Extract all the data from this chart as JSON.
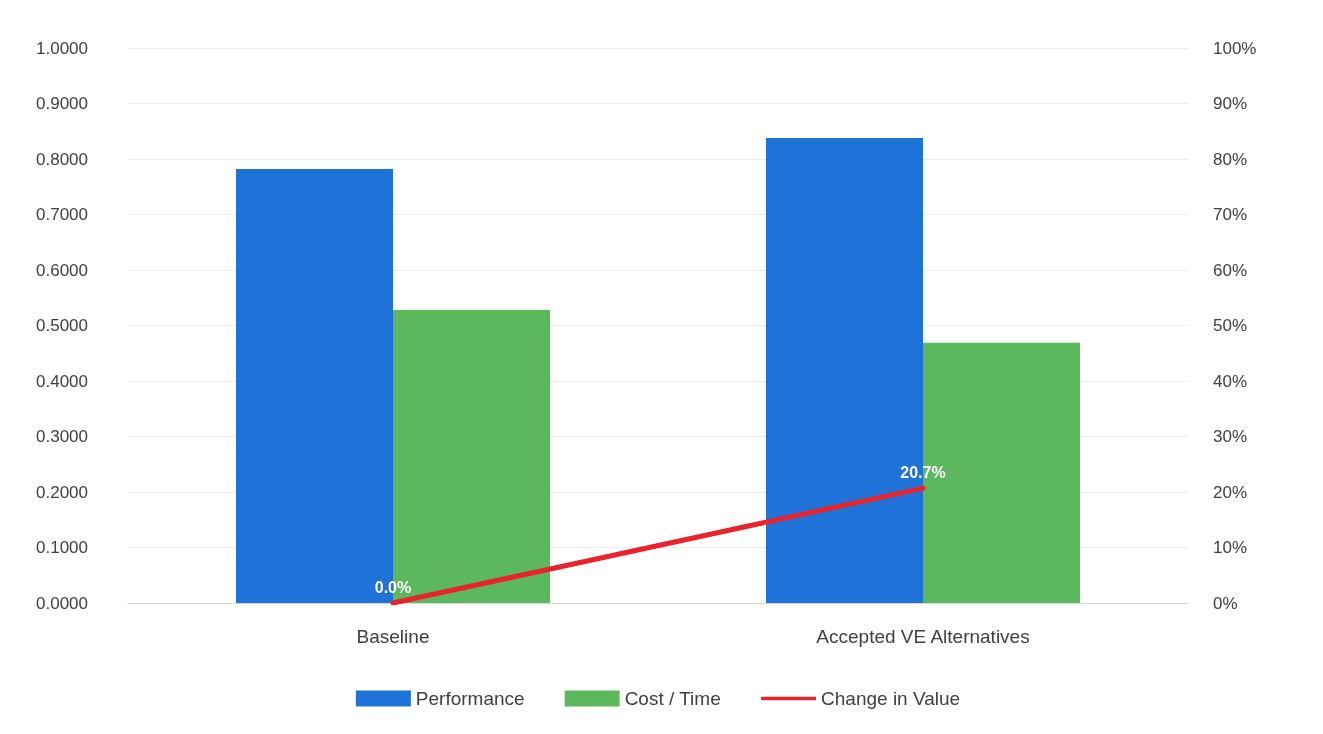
{
  "chart_data": {
    "type": "bar",
    "categories": [
      "Baseline",
      "Accepted VE Alternatives"
    ],
    "series": [
      {
        "name": "Performance",
        "color": "#1f72d8",
        "values": [
          0.782,
          0.838
        ]
      },
      {
        "name": "Cost / Time",
        "color": "#5cb85c",
        "values": [
          0.528,
          0.469
        ]
      },
      {
        "name": "Change in Value",
        "type": "line",
        "axis": "y2",
        "color": "#e8232b",
        "values": [
          0,
          20.7
        ],
        "value_labels": [
          "0.0%",
          "20.7%"
        ]
      }
    ],
    "ylim": [
      0,
      1
    ],
    "yticks": [
      {
        "value": 0,
        "label": "0.0000"
      },
      {
        "value": 0.1,
        "label": "0.1000"
      },
      {
        "value": 0.2,
        "label": "0.2000"
      },
      {
        "value": 0.3,
        "label": "0.3000"
      },
      {
        "value": 0.4,
        "label": "0.4000"
      },
      {
        "value": 0.5,
        "label": "0.5000"
      },
      {
        "value": 0.6,
        "label": "0.6000"
      },
      {
        "value": 0.7,
        "label": "0.7000"
      },
      {
        "value": 0.8,
        "label": "0.8000"
      },
      {
        "value": 0.9,
        "label": "0.9000"
      },
      {
        "value": 1,
        "label": "1.0000"
      }
    ],
    "y2lim": [
      0,
      100
    ],
    "y2ticks": [
      {
        "value": 0,
        "label": "0%"
      },
      {
        "value": 10,
        "label": "10%"
      },
      {
        "value": 20,
        "label": "20%"
      },
      {
        "value": 30,
        "label": "30%"
      },
      {
        "value": 40,
        "label": "40%"
      },
      {
        "value": 50,
        "label": "50%"
      },
      {
        "value": 60,
        "label": "60%"
      },
      {
        "value": 70,
        "label": "70%"
      },
      {
        "value": 80,
        "label": "80%"
      },
      {
        "value": 90,
        "label": "90%"
      },
      {
        "value": 100,
        "label": "100%"
      }
    ],
    "grid": "y",
    "legend": "bottom",
    "marker": "none"
  }
}
